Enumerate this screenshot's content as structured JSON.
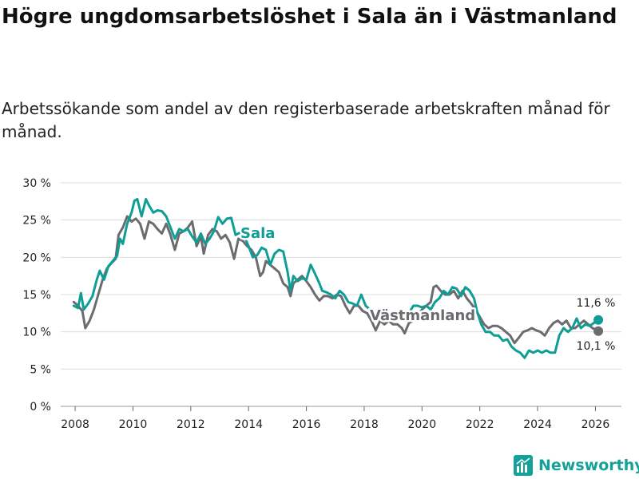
{
  "title": "Högre ungdomsarbetslöshet i Sala än i Västmanland",
  "subtitle": "Arbetssökande som andel av den registerbaserade arbetskraften månad för månad.",
  "brand": "Newsworthy",
  "colors": {
    "sala": "#0f9e95",
    "vastmanland": "#6b6b70",
    "grid": "#dcdcdc",
    "brand": "#14a19a"
  },
  "chart_data": {
    "type": "line",
    "title": "Högre ungdomsarbetslöshet i Sala än i Västmanland",
    "xlabel": "",
    "ylabel": "",
    "xlim": [
      2007.5,
      2026.9
    ],
    "ylim": [
      0,
      30
    ],
    "x_ticks": [
      2008,
      2010,
      2012,
      2014,
      2016,
      2018,
      2020,
      2022,
      2024,
      2026
    ],
    "y_ticks": [
      {
        "value": 0,
        "label": "0 %"
      },
      {
        "value": 5,
        "label": "5 %"
      },
      {
        "value": 10,
        "label": "10 %"
      },
      {
        "value": 15,
        "label": "15 %"
      },
      {
        "value": 20,
        "label": "20 %"
      },
      {
        "value": 25,
        "label": "25 %"
      },
      {
        "value": 30,
        "label": "30 %"
      }
    ],
    "grid": true,
    "series": [
      {
        "name": "Sala",
        "label": "Sala",
        "end_label": "11,6 %",
        "points": [
          [
            2007.95,
            13.5
          ],
          [
            2008.1,
            13.2
          ],
          [
            2008.2,
            15.2
          ],
          [
            2008.3,
            13.0
          ],
          [
            2008.45,
            13.8
          ],
          [
            2008.6,
            14.8
          ],
          [
            2008.75,
            17.0
          ],
          [
            2008.85,
            18.2
          ],
          [
            2009.0,
            17.0
          ],
          [
            2009.15,
            18.8
          ],
          [
            2009.3,
            19.5
          ],
          [
            2009.45,
            20.2
          ],
          [
            2009.55,
            22.5
          ],
          [
            2009.65,
            21.8
          ],
          [
            2009.8,
            24.5
          ],
          [
            2009.95,
            26.0
          ],
          [
            2010.05,
            27.6
          ],
          [
            2010.15,
            27.8
          ],
          [
            2010.3,
            25.5
          ],
          [
            2010.45,
            27.8
          ],
          [
            2010.55,
            27.0
          ],
          [
            2010.7,
            26.0
          ],
          [
            2010.85,
            26.3
          ],
          [
            2011.0,
            26.2
          ],
          [
            2011.15,
            25.5
          ],
          [
            2011.3,
            24.0
          ],
          [
            2011.45,
            22.5
          ],
          [
            2011.6,
            23.8
          ],
          [
            2011.75,
            23.5
          ],
          [
            2011.9,
            23.8
          ],
          [
            2012.05,
            22.8
          ],
          [
            2012.2,
            22.0
          ],
          [
            2012.35,
            23.2
          ],
          [
            2012.5,
            21.8
          ],
          [
            2012.65,
            22.5
          ],
          [
            2012.8,
            23.5
          ],
          [
            2012.95,
            25.4
          ],
          [
            2013.1,
            24.5
          ],
          [
            2013.25,
            25.2
          ],
          [
            2013.4,
            25.3
          ],
          [
            2013.55,
            23.0
          ],
          [
            2013.7,
            23.3
          ],
          [
            2013.85,
            22.8
          ],
          [
            2014.0,
            21.5
          ],
          [
            2014.15,
            20.0
          ],
          [
            2014.3,
            20.3
          ],
          [
            2014.45,
            21.3
          ],
          [
            2014.6,
            21.0
          ],
          [
            2014.75,
            19.0
          ],
          [
            2014.9,
            20.5
          ],
          [
            2015.05,
            21.0
          ],
          [
            2015.2,
            20.8
          ],
          [
            2015.35,
            18.0
          ],
          [
            2015.45,
            15.5
          ],
          [
            2015.55,
            17.5
          ],
          [
            2015.7,
            16.8
          ],
          [
            2015.85,
            17.2
          ],
          [
            2016.0,
            17.0
          ],
          [
            2016.15,
            19.0
          ],
          [
            2016.3,
            17.8
          ],
          [
            2016.45,
            16.5
          ],
          [
            2016.55,
            15.5
          ],
          [
            2016.7,
            15.3
          ],
          [
            2016.85,
            15.0
          ],
          [
            2017.0,
            14.5
          ],
          [
            2017.15,
            15.5
          ],
          [
            2017.3,
            15.0
          ],
          [
            2017.45,
            14.0
          ],
          [
            2017.6,
            13.8
          ],
          [
            2017.75,
            13.5
          ],
          [
            2017.9,
            15.0
          ],
          [
            2018.05,
            13.5
          ],
          [
            2018.2,
            13.0
          ],
          [
            2018.35,
            12.5
          ],
          [
            2018.5,
            12.0
          ],
          [
            2018.65,
            11.5
          ],
          [
            2018.8,
            12.0
          ],
          [
            2018.95,
            12.5
          ],
          [
            2019.1,
            12.3
          ],
          [
            2019.25,
            12.8
          ],
          [
            2019.4,
            12.0
          ],
          [
            2019.55,
            12.5
          ],
          [
            2019.7,
            13.5
          ],
          [
            2019.85,
            13.5
          ],
          [
            2020.0,
            13.3
          ],
          [
            2020.15,
            13.5
          ],
          [
            2020.3,
            13.0
          ],
          [
            2020.45,
            14.0
          ],
          [
            2020.6,
            14.5
          ],
          [
            2020.75,
            15.5
          ],
          [
            2020.9,
            15.0
          ],
          [
            2021.05,
            16.0
          ],
          [
            2021.2,
            15.8
          ],
          [
            2021.35,
            14.8
          ],
          [
            2021.5,
            16.0
          ],
          [
            2021.65,
            15.5
          ],
          [
            2021.8,
            14.5
          ],
          [
            2021.9,
            12.8
          ],
          [
            2022.05,
            11.0
          ],
          [
            2022.2,
            10.0
          ],
          [
            2022.35,
            10.0
          ],
          [
            2022.5,
            9.5
          ],
          [
            2022.65,
            9.5
          ],
          [
            2022.8,
            8.8
          ],
          [
            2022.95,
            9.0
          ],
          [
            2023.1,
            8.0
          ],
          [
            2023.25,
            7.5
          ],
          [
            2023.4,
            7.2
          ],
          [
            2023.55,
            6.5
          ],
          [
            2023.7,
            7.5
          ],
          [
            2023.85,
            7.2
          ],
          [
            2024.0,
            7.5
          ],
          [
            2024.15,
            7.2
          ],
          [
            2024.3,
            7.5
          ],
          [
            2024.45,
            7.2
          ],
          [
            2024.6,
            7.2
          ],
          [
            2024.75,
            9.5
          ],
          [
            2024.9,
            10.5
          ],
          [
            2025.05,
            10.0
          ],
          [
            2025.2,
            10.5
          ],
          [
            2025.35,
            11.8
          ],
          [
            2025.5,
            10.5
          ],
          [
            2025.65,
            11.0
          ],
          [
            2025.8,
            10.8
          ],
          [
            2025.95,
            11.2
          ],
          [
            2026.1,
            11.6
          ]
        ]
      },
      {
        "name": "Västmanland",
        "label": "Västmanland",
        "end_label": "10,1 %",
        "points": [
          [
            2007.95,
            14.0
          ],
          [
            2008.1,
            13.5
          ],
          [
            2008.25,
            12.8
          ],
          [
            2008.35,
            10.5
          ],
          [
            2008.5,
            11.5
          ],
          [
            2008.65,
            13.0
          ],
          [
            2008.8,
            15.0
          ],
          [
            2008.95,
            17.0
          ],
          [
            2009.1,
            18.5
          ],
          [
            2009.25,
            19.2
          ],
          [
            2009.4,
            19.8
          ],
          [
            2009.5,
            23.0
          ],
          [
            2009.65,
            24.0
          ],
          [
            2009.8,
            25.5
          ],
          [
            2009.95,
            24.8
          ],
          [
            2010.1,
            25.2
          ],
          [
            2010.25,
            24.5
          ],
          [
            2010.4,
            22.5
          ],
          [
            2010.55,
            24.8
          ],
          [
            2010.7,
            24.5
          ],
          [
            2010.85,
            23.8
          ],
          [
            2011.0,
            23.2
          ],
          [
            2011.15,
            24.5
          ],
          [
            2011.3,
            23.0
          ],
          [
            2011.45,
            21.0
          ],
          [
            2011.6,
            23.2
          ],
          [
            2011.75,
            23.5
          ],
          [
            2011.9,
            24.0
          ],
          [
            2012.05,
            24.8
          ],
          [
            2012.2,
            21.5
          ],
          [
            2012.35,
            22.8
          ],
          [
            2012.45,
            20.5
          ],
          [
            2012.6,
            23.0
          ],
          [
            2012.75,
            23.8
          ],
          [
            2012.9,
            23.5
          ],
          [
            2013.05,
            22.5
          ],
          [
            2013.2,
            23.0
          ],
          [
            2013.35,
            22.0
          ],
          [
            2013.5,
            19.8
          ],
          [
            2013.65,
            22.5
          ],
          [
            2013.8,
            22.2
          ],
          [
            2013.95,
            21.5
          ],
          [
            2014.1,
            21.0
          ],
          [
            2014.25,
            20.0
          ],
          [
            2014.4,
            17.5
          ],
          [
            2014.5,
            18.0
          ],
          [
            2014.6,
            19.5
          ],
          [
            2014.75,
            19.0
          ],
          [
            2014.9,
            18.5
          ],
          [
            2015.05,
            18.0
          ],
          [
            2015.2,
            16.5
          ],
          [
            2015.35,
            16.0
          ],
          [
            2015.45,
            14.8
          ],
          [
            2015.55,
            16.5
          ],
          [
            2015.7,
            17.0
          ],
          [
            2015.85,
            17.5
          ],
          [
            2016.0,
            16.8
          ],
          [
            2016.15,
            16.0
          ],
          [
            2016.3,
            15.0
          ],
          [
            2016.45,
            14.2
          ],
          [
            2016.6,
            14.8
          ],
          [
            2016.75,
            14.8
          ],
          [
            2016.9,
            14.5
          ],
          [
            2017.05,
            15.0
          ],
          [
            2017.2,
            14.8
          ],
          [
            2017.35,
            13.5
          ],
          [
            2017.5,
            12.5
          ],
          [
            2017.65,
            13.5
          ],
          [
            2017.8,
            13.5
          ],
          [
            2017.95,
            12.8
          ],
          [
            2018.1,
            12.5
          ],
          [
            2018.25,
            11.5
          ],
          [
            2018.4,
            10.2
          ],
          [
            2018.55,
            11.5
          ],
          [
            2018.7,
            11.0
          ],
          [
            2018.85,
            11.5
          ],
          [
            2019.0,
            11.0
          ],
          [
            2019.15,
            11.0
          ],
          [
            2019.3,
            10.5
          ],
          [
            2019.4,
            9.8
          ],
          [
            2019.55,
            11.2
          ],
          [
            2019.7,
            11.5
          ],
          [
            2019.85,
            12.0
          ],
          [
            2020.0,
            13.0
          ],
          [
            2020.15,
            13.5
          ],
          [
            2020.3,
            14.0
          ],
          [
            2020.4,
            16.0
          ],
          [
            2020.5,
            16.2
          ],
          [
            2020.65,
            15.5
          ],
          [
            2020.8,
            15.0
          ],
          [
            2020.95,
            15.0
          ],
          [
            2021.1,
            15.5
          ],
          [
            2021.25,
            14.5
          ],
          [
            2021.4,
            15.5
          ],
          [
            2021.55,
            14.5
          ],
          [
            2021.7,
            13.8
          ],
          [
            2021.85,
            13.0
          ],
          [
            2022.0,
            12.0
          ],
          [
            2022.15,
            11.0
          ],
          [
            2022.3,
            10.5
          ],
          [
            2022.45,
            10.8
          ],
          [
            2022.6,
            10.8
          ],
          [
            2022.75,
            10.5
          ],
          [
            2022.9,
            10.0
          ],
          [
            2023.05,
            9.5
          ],
          [
            2023.2,
            8.5
          ],
          [
            2023.35,
            9.2
          ],
          [
            2023.5,
            10.0
          ],
          [
            2023.65,
            10.2
          ],
          [
            2023.8,
            10.5
          ],
          [
            2023.95,
            10.2
          ],
          [
            2024.1,
            10.0
          ],
          [
            2024.25,
            9.5
          ],
          [
            2024.4,
            10.5
          ],
          [
            2024.55,
            11.2
          ],
          [
            2024.7,
            11.5
          ],
          [
            2024.85,
            11.0
          ],
          [
            2025.0,
            11.5
          ],
          [
            2025.15,
            10.5
          ],
          [
            2025.3,
            10.5
          ],
          [
            2025.45,
            11.0
          ],
          [
            2025.6,
            11.5
          ],
          [
            2025.75,
            11.0
          ],
          [
            2025.9,
            10.5
          ],
          [
            2026.1,
            10.1
          ]
        ]
      }
    ]
  }
}
